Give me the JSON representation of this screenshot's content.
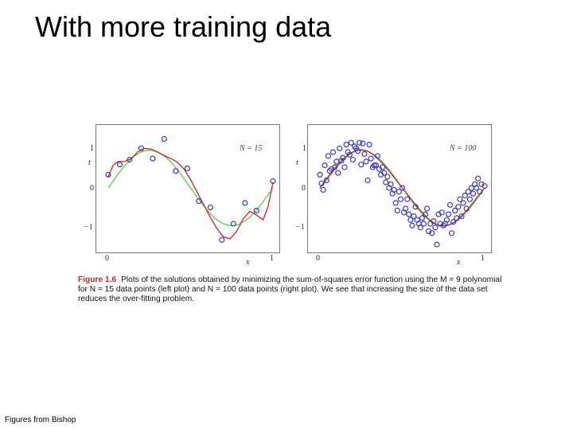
{
  "slide": {
    "title": "With more training data",
    "footer": "Figures from Bishop"
  },
  "caption": {
    "figure_label": "Figure 1.6",
    "text": "Plots of the solutions obtained by minimizing the sum-of-squares error function using the M = 9 polynomial for N = 15 data points (left plot) and N = 100 data points (right plot). We see that increasing the size of the data set reduces the over-fitting problem."
  },
  "colors": {
    "points": "#3a3ab8",
    "fit": "#d62020",
    "truth": "#5ad15a",
    "caption_label": "#c0272d"
  },
  "chart_data": [
    {
      "type": "scatter",
      "annotation": "N = 15",
      "xlabel": "x",
      "ylabel": "t",
      "xlim": [
        0,
        1
      ],
      "ylim": [
        -1.5,
        1.5
      ],
      "x_ticks": [
        "0",
        "1"
      ],
      "y_ticks": [
        "1",
        "0",
        "−1"
      ],
      "points": [
        [
          0.0,
          0.35
        ],
        [
          0.07,
          0.62
        ],
        [
          0.13,
          0.75
        ],
        [
          0.2,
          1.05
        ],
        [
          0.27,
          0.78
        ],
        [
          0.34,
          1.3
        ],
        [
          0.41,
          0.45
        ],
        [
          0.48,
          0.52
        ],
        [
          0.55,
          -0.35
        ],
        [
          0.62,
          -0.52
        ],
        [
          0.69,
          -1.38
        ],
        [
          0.76,
          -0.95
        ],
        [
          0.83,
          -0.4
        ],
        [
          0.9,
          -0.6
        ],
        [
          1.0,
          0.18
        ]
      ],
      "fit_curve": [
        [
          0.0,
          0.3
        ],
        [
          0.03,
          0.6
        ],
        [
          0.06,
          0.7
        ],
        [
          0.1,
          0.7
        ],
        [
          0.14,
          0.78
        ],
        [
          0.18,
          0.96
        ],
        [
          0.22,
          1.05
        ],
        [
          0.26,
          1.03
        ],
        [
          0.3,
          0.95
        ],
        [
          0.34,
          0.86
        ],
        [
          0.38,
          0.78
        ],
        [
          0.42,
          0.68
        ],
        [
          0.46,
          0.5
        ],
        [
          0.5,
          0.22
        ],
        [
          0.54,
          -0.12
        ],
        [
          0.58,
          -0.45
        ],
        [
          0.62,
          -0.78
        ],
        [
          0.66,
          -1.08
        ],
        [
          0.7,
          -1.3
        ],
        [
          0.74,
          -1.35
        ],
        [
          0.78,
          -1.15
        ],
        [
          0.82,
          -0.82
        ],
        [
          0.86,
          -0.62
        ],
        [
          0.9,
          -0.72
        ],
        [
          0.94,
          -0.85
        ],
        [
          0.97,
          -0.5
        ],
        [
          1.0,
          0.15
        ]
      ],
      "truth_curve": "sin(2πx)"
    },
    {
      "type": "scatter",
      "annotation": "N = 100",
      "xlabel": "x",
      "ylabel": "t",
      "xlim": [
        0,
        1
      ],
      "ylim": [
        -1.5,
        1.5
      ],
      "x_ticks": [
        "0",
        "1"
      ],
      "y_ticks": [
        "1",
        "0",
        "−1"
      ],
      "points": [
        [
          0.0,
          0.35
        ],
        [
          0.01,
          0.12
        ],
        [
          0.02,
          -0.05
        ],
        [
          0.03,
          0.6
        ],
        [
          0.04,
          0.2
        ],
        [
          0.05,
          0.85
        ],
        [
          0.06,
          0.45
        ],
        [
          0.07,
          0.5
        ],
        [
          0.08,
          0.95
        ],
        [
          0.09,
          0.55
        ],
        [
          0.1,
          0.7
        ],
        [
          0.11,
          0.4
        ],
        [
          0.12,
          1.05
        ],
        [
          0.13,
          0.72
        ],
        [
          0.14,
          0.8
        ],
        [
          0.15,
          0.55
        ],
        [
          0.16,
          1.15
        ],
        [
          0.17,
          0.95
        ],
        [
          0.18,
          0.88
        ],
        [
          0.19,
          1.2
        ],
        [
          0.2,
          0.75
        ],
        [
          0.21,
          1.1
        ],
        [
          0.22,
          1.05
        ],
        [
          0.23,
          0.98
        ],
        [
          0.24,
          1.2
        ],
        [
          0.25,
          0.62
        ],
        [
          0.26,
          1.18
        ],
        [
          0.27,
          0.9
        ],
        [
          0.28,
          0.7
        ],
        [
          0.29,
          0.2
        ],
        [
          0.3,
          1.15
        ],
        [
          0.31,
          0.78
        ],
        [
          0.32,
          0.55
        ],
        [
          0.33,
          0.6
        ],
        [
          0.34,
          0.6
        ],
        [
          0.35,
          0.85
        ],
        [
          0.36,
          0.5
        ],
        [
          0.37,
          0.35
        ],
        [
          0.38,
          0.55
        ],
        [
          0.39,
          0.4
        ],
        [
          0.4,
          0.15
        ],
        [
          0.41,
          0.3
        ],
        [
          0.42,
          0.0
        ],
        [
          0.43,
          0.1
        ],
        [
          0.44,
          -0.15
        ],
        [
          0.45,
          -0.05
        ],
        [
          0.46,
          -0.4
        ],
        [
          0.47,
          -0.6
        ],
        [
          0.48,
          -0.1
        ],
        [
          0.49,
          -0.3
        ],
        [
          0.5,
          0.0
        ],
        [
          0.51,
          -0.65
        ],
        [
          0.52,
          -0.55
        ],
        [
          0.53,
          -0.3
        ],
        [
          0.54,
          -0.7
        ],
        [
          0.55,
          -0.85
        ],
        [
          0.56,
          -1.0
        ],
        [
          0.57,
          -0.75
        ],
        [
          0.58,
          -0.5
        ],
        [
          0.59,
          -0.85
        ],
        [
          0.6,
          -0.95
        ],
        [
          0.61,
          -1.05
        ],
        [
          0.62,
          -0.8
        ],
        [
          0.63,
          -0.95
        ],
        [
          0.64,
          -0.7
        ],
        [
          0.65,
          -0.55
        ],
        [
          0.66,
          -1.15
        ],
        [
          0.67,
          -0.95
        ],
        [
          0.68,
          -1.2
        ],
        [
          0.69,
          -0.88
        ],
        [
          0.7,
          -1.05
        ],
        [
          0.71,
          -1.5
        ],
        [
          0.72,
          -0.7
        ],
        [
          0.73,
          -0.95
        ],
        [
          0.74,
          -0.65
        ],
        [
          0.75,
          -1.0
        ],
        [
          0.76,
          -0.95
        ],
        [
          0.77,
          -0.85
        ],
        [
          0.78,
          -0.7
        ],
        [
          0.79,
          -0.45
        ],
        [
          0.8,
          -1.2
        ],
        [
          0.81,
          -0.9
        ],
        [
          0.82,
          -0.6
        ],
        [
          0.83,
          -0.8
        ],
        [
          0.84,
          -0.5
        ],
        [
          0.85,
          -0.3
        ],
        [
          0.86,
          -0.75
        ],
        [
          0.87,
          -0.4
        ],
        [
          0.88,
          -0.2
        ],
        [
          0.89,
          -0.55
        ],
        [
          0.9,
          -0.1
        ],
        [
          0.91,
          -0.3
        ],
        [
          0.92,
          0.0
        ],
        [
          0.93,
          -0.15
        ],
        [
          0.94,
          0.1
        ],
        [
          0.95,
          0.0
        ],
        [
          0.96,
          0.25
        ],
        [
          0.97,
          -0.1
        ],
        [
          0.98,
          0.1
        ],
        [
          1.0,
          0.05
        ]
      ],
      "fit_curve": "near sin(2πx)",
      "truth_curve": "sin(2πx)"
    }
  ]
}
